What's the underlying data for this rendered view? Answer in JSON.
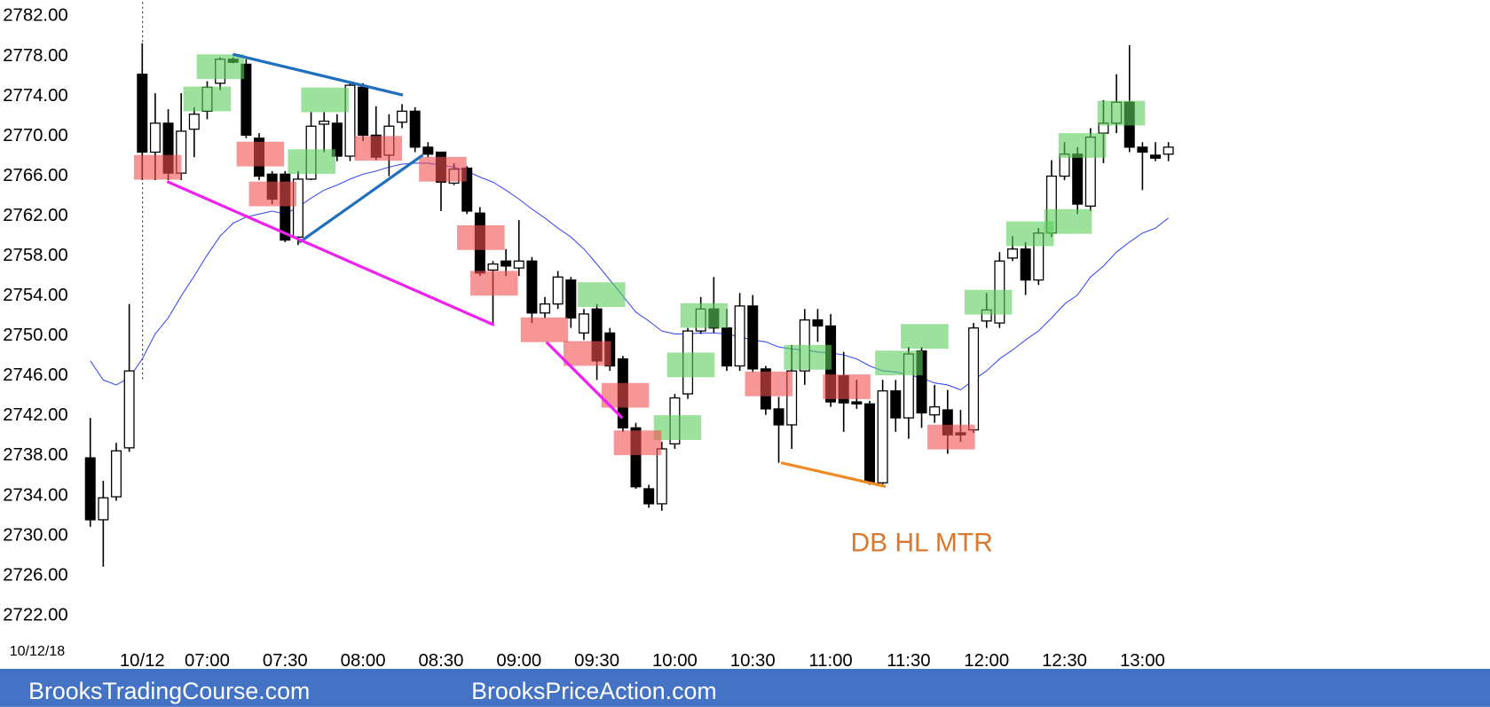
{
  "chart_data": {
    "type": "candlestick",
    "date_label": "10/12/18",
    "xticks": [
      {
        "value": 4,
        "label": "10/12"
      },
      {
        "value": 9,
        "label": "07:00"
      },
      {
        "value": 15,
        "label": "07:30"
      },
      {
        "value": 21,
        "label": "08:00"
      },
      {
        "value": 27,
        "label": "08:30"
      },
      {
        "value": 33,
        "label": "09:00"
      },
      {
        "value": 39,
        "label": "09:30"
      },
      {
        "value": 45,
        "label": "10:00"
      },
      {
        "value": 51,
        "label": "10:30"
      },
      {
        "value": 57,
        "label": "11:00"
      },
      {
        "value": 63,
        "label": "11:30"
      },
      {
        "value": 69,
        "label": "12:00"
      },
      {
        "value": 75,
        "label": "12:30"
      },
      {
        "value": 81,
        "label": "13:00"
      }
    ],
    "ylim": [
      2722,
      2782
    ],
    "yticks": [
      {
        "value": 2722,
        "label": "2722.00"
      },
      {
        "value": 2726,
        "label": "2726.00"
      },
      {
        "value": 2730,
        "label": "2730.00"
      },
      {
        "value": 2734,
        "label": "2734.00"
      },
      {
        "value": 2738,
        "label": "2738.00"
      },
      {
        "value": 2742,
        "label": "2742.00"
      },
      {
        "value": 2746,
        "label": "2746.00"
      },
      {
        "value": 2750,
        "label": "2750.00"
      },
      {
        "value": 2754,
        "label": "2754.00"
      },
      {
        "value": 2758,
        "label": "2758.00"
      },
      {
        "value": 2762,
        "label": "2762.00"
      },
      {
        "value": 2766,
        "label": "2766.00"
      },
      {
        "value": 2770,
        "label": "2770.00"
      },
      {
        "value": 2774,
        "label": "2774.00"
      },
      {
        "value": 2778,
        "label": "2778.00"
      },
      {
        "value": 2782,
        "label": "2782.00"
      }
    ],
    "up_color": "#ffffff",
    "down_color": "#000000",
    "open": [
      2737.8,
      2731.6,
      2733.9,
      2738.8,
      2776.2,
      2768.4,
      2771.3,
      2766.3,
      2770.7,
      2772.5,
      2775.3,
      2777.7,
      2777.2,
      2769.8,
      2766.2,
      2766.2,
      2759.9,
      2765.7,
      2771.2,
      2771.3,
      2768,
      2774.9,
      2770.1,
      2768.1,
      2771.4,
      2772.5,
      2768.9,
      2768.4,
      2765.3,
      2766.8,
      2762.3,
      2756.6,
      2757.5,
      2756.8,
      2757.5,
      2752.3,
      2753.2,
      2755.6,
      2750.3,
      2752.7,
      2750.3,
      2747.7,
      2740.8,
      2734.7,
      2733.2,
      2739.2,
      2744.2,
      2750.5,
      2752.7,
      2750.8,
      2747,
      2753,
      2746.7,
      2742.7,
      2741.1,
      2746.5,
      2751.6,
      2751,
      2746,
      2743.4,
      2743.2,
      2735.3,
      2744.5,
      2741.8,
      2748.5,
      2742.1,
      2742.6,
      2740.3,
      2740.6,
      2751.5,
      2751.3,
      2757.8,
      2758.7,
      2755.6,
      2760.3,
      2766,
      2768.2,
      2763,
      2770.3,
      2771.3,
      2773.4,
      2768.9,
      2768.1,
      2768.2
    ],
    "high": [
      2741.8,
      2735.5,
      2739.3,
      2753.2,
      2779.3,
      2774.3,
      2772.7,
      2774.3,
      2772.9,
      2775.5,
      2777.9,
      2777.9,
      2777.7,
      2770.3,
      2766.5,
      2766.5,
      2766.5,
      2772.4,
      2772.4,
      2772.2,
      2775.3,
      2775.3,
      2773,
      2772.2,
      2773.2,
      2772.9,
      2769.4,
      2768.4,
      2767.3,
      2767,
      2762.9,
      2757.5,
      2758.7,
      2761.6,
      2757.9,
      2753.9,
      2756.5,
      2755.9,
      2752.7,
      2753.2,
      2750.8,
      2748,
      2741.3,
      2735.1,
      2739.4,
      2744.2,
      2750.8,
      2753.9,
      2755.9,
      2752.7,
      2754.3,
      2754.1,
      2747,
      2743.9,
      2749.1,
      2752.7,
      2752.7,
      2752.2,
      2748.4,
      2745.6,
      2743.5,
      2745.6,
      2745.6,
      2748.9,
      2748.9,
      2745.1,
      2744.6,
      2742.6,
      2751.3,
      2754.3,
      2758.4,
      2760,
      2759.4,
      2760.8,
      2767.6,
      2769.4,
      2768.9,
      2770.8,
      2773.6,
      2776.2,
      2779.1,
      2769.4,
      2769.4,
      2769.4
    ],
    "low": [
      2730.9,
      2726.9,
      2733.5,
      2738.4,
      2765.6,
      2765.6,
      2765.6,
      2765.6,
      2767.9,
      2771.7,
      2774.6,
      2777.3,
      2769.8,
      2765.6,
      2763.2,
      2759.4,
      2759.1,
      2765.6,
      2768.4,
      2767.5,
      2767.5,
      2769.5,
      2767.6,
      2766,
      2770.8,
      2768.4,
      2767.9,
      2762.5,
      2765.1,
      2762.2,
      2756,
      2751.3,
      2756,
      2756,
      2751.3,
      2751.8,
      2752.7,
      2750.8,
      2749.6,
      2745.6,
      2746.5,
      2740.4,
      2734.7,
      2732.8,
      2732.5,
      2738.7,
      2743.7,
      2750.2,
      2750.3,
      2746.5,
      2746.5,
      2746.4,
      2742.1,
      2737.3,
      2738.7,
      2745.1,
      2749.4,
      2742.9,
      2740.4,
      2742.7,
      2735.1,
      2734.9,
      2740.4,
      2739.7,
      2740.8,
      2741.3,
      2738.2,
      2739.4,
      2740.3,
      2750.8,
      2750.8,
      2757.5,
      2754.1,
      2755.1,
      2759.9,
      2765.6,
      2762.2,
      2762.5,
      2767.3,
      2770.3,
      2768.4,
      2764.6,
      2767.5,
      2767.5
    ],
    "close": [
      2731.6,
      2733.8,
      2738.5,
      2746.5,
      2768.4,
      2771.3,
      2766.3,
      2770.5,
      2772.2,
      2774.9,
      2777.7,
      2777.4,
      2770.1,
      2766,
      2763.7,
      2759.6,
      2765.7,
      2771,
      2771.5,
      2768,
      2775.1,
      2770.1,
      2767.9,
      2771,
      2772.5,
      2768.9,
      2768.2,
      2765.4,
      2766.7,
      2762.5,
      2756.3,
      2757.2,
      2757,
      2757.5,
      2752.3,
      2753.2,
      2755.9,
      2751.8,
      2752.2,
      2747.5,
      2747,
      2740.8,
      2734.9,
      2733.2,
      2738.7,
      2743.8,
      2750.5,
      2752.7,
      2750.8,
      2747,
      2753,
      2746.7,
      2742.7,
      2741.1,
      2746.5,
      2751.6,
      2751,
      2743.4,
      2743.3,
      2743.2,
      2735.4,
      2744.5,
      2741.8,
      2748.2,
      2742.3,
      2742.9,
      2740.1,
      2740.1,
      2750.8,
      2752.6,
      2757.5,
      2758.7,
      2755.6,
      2760.3,
      2766,
      2768.2,
      2763.2,
      2769.9,
      2771.3,
      2773.4,
      2768.9,
      2768.4,
      2767.8,
      2768.9
    ],
    "lines": [
      {
        "color": "#3b4cf0",
        "values": [
          2747.5,
          2745.6,
          2745.1,
          2745.8,
          2747.7,
          2750.2,
          2751.8,
          2754.0,
          2756.0,
          2758.1,
          2760.0,
          2761.3,
          2761.9,
          2762.2,
          2762.5,
          2762.2,
          2762.9,
          2763.8,
          2764.6,
          2765.1,
          2765.7,
          2766.2,
          2766.5,
          2766.9,
          2767.2,
          2767.3,
          2767.3,
          2767.1,
          2766.9,
          2766.5,
          2765.9,
          2765.4,
          2764.6,
          2763.7,
          2762.7,
          2761.8,
          2760.8,
          2759.9,
          2758.7,
          2757.2,
          2755.6,
          2754.0,
          2752.4,
          2751.5,
          2750.5,
          2750.2,
          2750.2,
          2750.3,
          2750.3,
          2750.2,
          2749.9,
          2749.6,
          2749.4,
          2748.9,
          2748.7,
          2748.6,
          2748.4,
          2748.3,
          2748.1,
          2747.7,
          2747.0,
          2746.5,
          2746.4,
          2746.1,
          2745.8,
          2745.3,
          2745.1,
          2744.6,
          2745.6,
          2746.5,
          2747.7,
          2748.6,
          2749.6,
          2750.5,
          2751.8,
          2753.2,
          2754.1,
          2755.9,
          2757.0,
          2758.4,
          2759.4,
          2760.3,
          2760.8,
          2761.8
        ]
      }
    ],
    "annotations": [
      {
        "text": "DB HL MTR",
        "color": "#d9782f"
      }
    ],
    "footer": [
      "BrooksTradingCourse.com",
      "BrooksPriceAction.com"
    ]
  }
}
